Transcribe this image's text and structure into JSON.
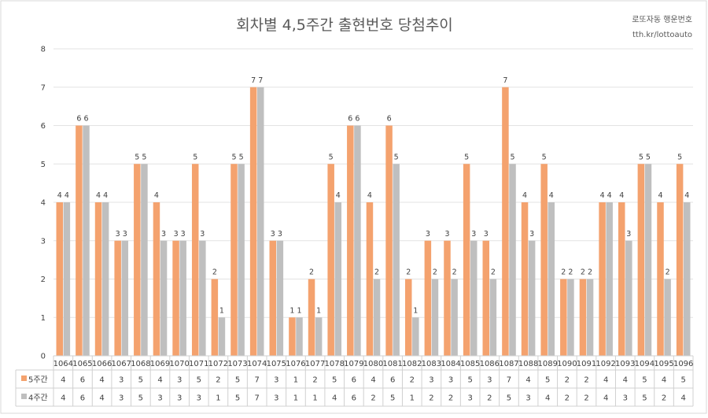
{
  "chart_data": {
    "type": "bar",
    "title": "회차별 4,5주간 출현번호 당첨추이",
    "watermark": {
      "line1": "로또자동 행운번호",
      "line2": "tth.kr/lottoauto"
    },
    "categories": [
      "1064",
      "1065",
      "1066",
      "1067",
      "1068",
      "1069",
      "1070",
      "1071",
      "1072",
      "1073",
      "1074",
      "1075",
      "1076",
      "1077",
      "1078",
      "1079",
      "1080",
      "1081",
      "1082",
      "1083",
      "1084",
      "1085",
      "1086",
      "1087",
      "1088",
      "1089",
      "1090",
      "1091",
      "1092",
      "1093",
      "1094",
      "1095",
      "1096"
    ],
    "series": [
      {
        "name": "5주간",
        "color": "#F4A26E",
        "values": [
          4,
          6,
          4,
          3,
          5,
          4,
          3,
          5,
          2,
          5,
          7,
          3,
          1,
          2,
          5,
          6,
          4,
          6,
          2,
          3,
          3,
          5,
          3,
          7,
          4,
          5,
          2,
          2,
          4,
          4,
          5,
          4,
          5
        ]
      },
      {
        "name": "4주간",
        "color": "#BFBFBF",
        "values": [
          4,
          6,
          4,
          3,
          5,
          3,
          3,
          3,
          1,
          5,
          7,
          3,
          1,
          1,
          4,
          6,
          2,
          5,
          1,
          2,
          2,
          3,
          2,
          5,
          3,
          4,
          2,
          2,
          4,
          3,
          5,
          2,
          4
        ]
      }
    ],
    "yticks": [
      "0",
      "1",
      "2",
      "3",
      "4",
      "5",
      "6",
      "7",
      "8"
    ],
    "ylim": [
      0,
      8
    ],
    "grid": true,
    "legend": "data-table"
  }
}
